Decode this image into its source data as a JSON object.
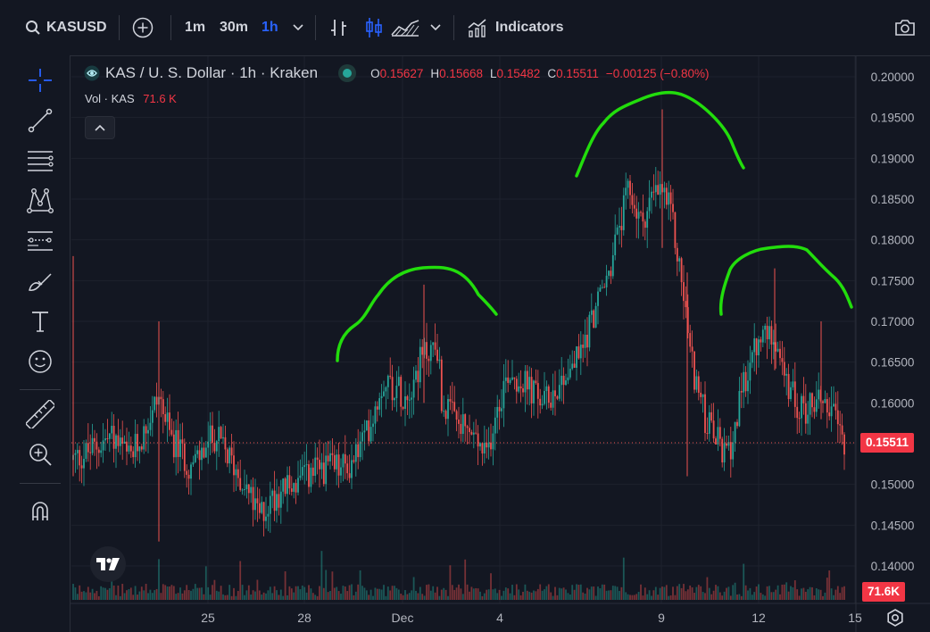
{
  "toolbar": {
    "symbol": "KASUSD",
    "timeframes": [
      "1m",
      "30m",
      "1h"
    ],
    "active_timeframe": "1h",
    "indicators_label": "Indicators"
  },
  "legend": {
    "title": "KAS / U. S. Dollar · 1h · Kraken",
    "open_label": "O",
    "open": "0.15627",
    "high_label": "H",
    "high": "0.15668",
    "low_label": "L",
    "low": "0.15482",
    "close_label": "C",
    "close": "0.15511",
    "change": "−0.00125 (−0.80%)"
  },
  "volume_legend": {
    "label": "Vol · KAS",
    "value": "71.6 K"
  },
  "price_scale": {
    "ticks": [
      "0.20000",
      "0.19500",
      "0.19000",
      "0.18500",
      "0.18000",
      "0.17500",
      "0.17000",
      "0.16500",
      "0.16000",
      "0.15500",
      "0.15000",
      "0.14500",
      "0.14000"
    ],
    "last_price_badge": "0.15511",
    "volume_badge": "71.6K"
  },
  "time_scale": {
    "ticks": [
      "25",
      "28",
      "Dec",
      "4",
      "9",
      "12",
      "15"
    ]
  },
  "colors": {
    "up": "#26a69a",
    "down": "#ef5350",
    "accent": "#2962ff",
    "annotation": "#22dd0c",
    "background": "#131722",
    "badge": "#f23645"
  },
  "icons": {
    "left_toolbar": [
      "crosshair-icon",
      "trend-line-icon",
      "fib-lines-icon",
      "pattern-icon",
      "forecast-icon",
      "brush-icon",
      "text-icon",
      "emoji-icon",
      "ruler-icon",
      "zoom-in-icon",
      "magnet-icon"
    ]
  }
}
